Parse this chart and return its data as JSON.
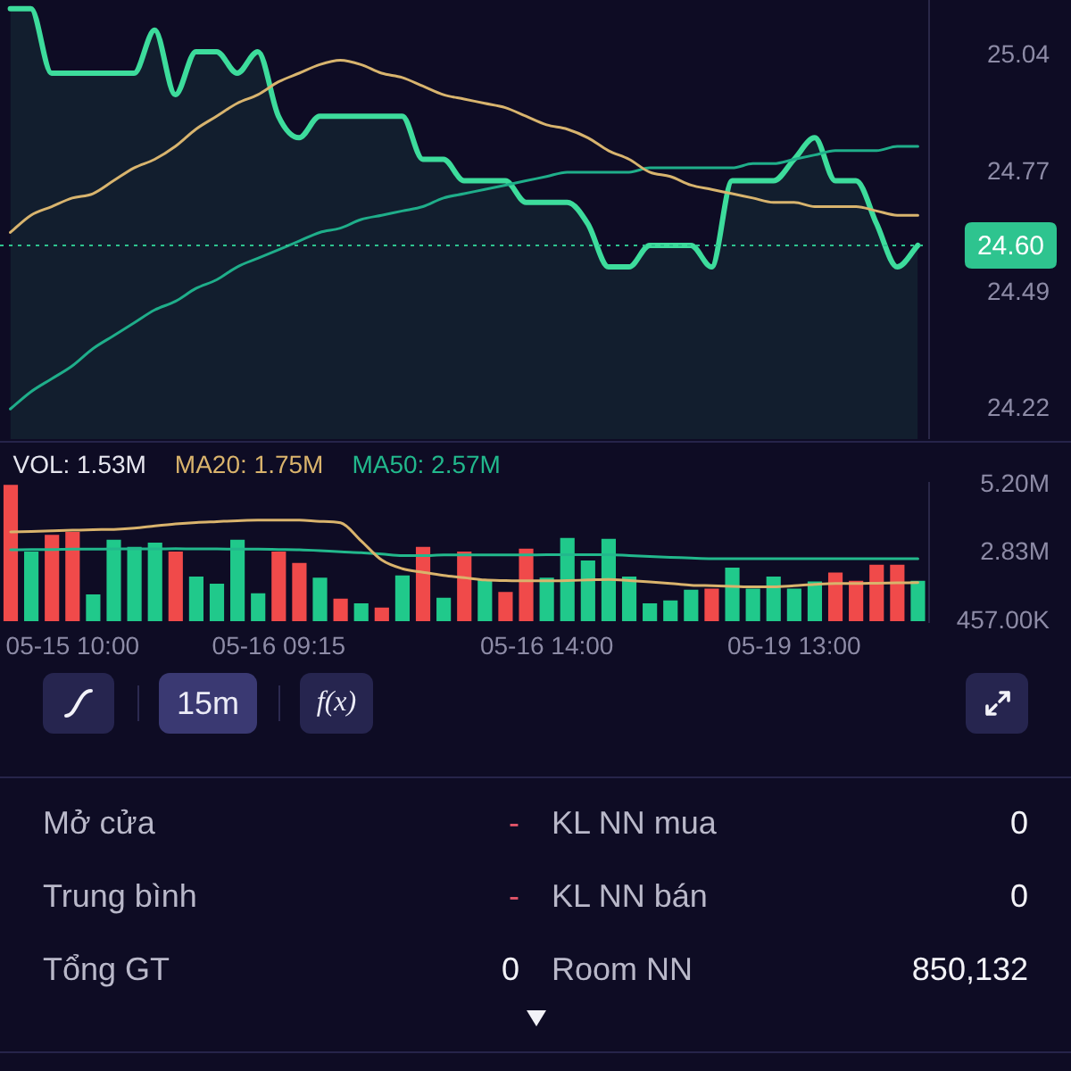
{
  "chart_data": [
    {
      "type": "line",
      "categories": [
        null,
        null,
        null,
        null,
        null,
        null,
        null,
        null,
        null,
        null,
        null,
        null,
        null,
        null,
        null,
        null,
        null,
        null,
        null,
        null,
        null,
        null,
        null,
        null,
        null,
        null,
        null,
        null,
        null,
        null,
        null,
        null,
        null,
        null,
        null,
        null,
        null,
        null,
        null,
        null,
        null,
        null,
        null,
        null,
        null
      ],
      "series": [
        {
          "type": "area",
          "color": "#3ddc9c",
          "values": [
            25.15,
            25.15,
            25.0,
            25.0,
            25.0,
            25.0,
            25.0,
            25.1,
            24.95,
            25.05,
            25.05,
            25.0,
            25.05,
            24.9,
            24.85,
            24.9,
            24.9,
            24.9,
            24.9,
            24.9,
            24.8,
            24.8,
            24.75,
            24.75,
            24.75,
            24.7,
            24.7,
            24.7,
            24.65,
            24.55,
            24.55,
            24.6,
            24.6,
            24.6,
            24.55,
            24.75,
            24.75,
            24.75,
            24.8,
            24.85,
            24.75,
            24.75,
            24.65,
            24.55,
            24.6
          ]
        },
        {
          "color": "#d8b46e",
          "values": [
            24.63,
            24.67,
            24.69,
            24.71,
            24.72,
            24.75,
            24.78,
            24.8,
            24.83,
            24.87,
            24.9,
            24.93,
            24.95,
            24.98,
            25.0,
            25.02,
            25.03,
            25.02,
            25.0,
            24.99,
            24.97,
            24.95,
            24.94,
            24.93,
            24.92,
            24.9,
            24.88,
            24.87,
            24.85,
            24.82,
            24.8,
            24.77,
            24.76,
            24.74,
            24.73,
            24.72,
            24.71,
            24.7,
            24.7,
            24.69,
            24.69,
            24.69,
            24.68,
            24.67,
            24.67
          ]
        },
        {
          "color": "#1fae8a",
          "values": [
            24.22,
            24.26,
            24.29,
            24.32,
            24.36,
            24.39,
            24.42,
            24.45,
            24.47,
            24.5,
            24.52,
            24.55,
            24.57,
            24.59,
            24.61,
            24.63,
            24.64,
            24.66,
            24.67,
            24.68,
            24.69,
            24.71,
            24.72,
            24.73,
            24.74,
            24.75,
            24.76,
            24.77,
            24.77,
            24.77,
            24.77,
            24.78,
            24.78,
            24.78,
            24.78,
            24.78,
            24.79,
            24.79,
            24.8,
            24.81,
            24.82,
            24.82,
            24.82,
            24.83,
            24.83
          ]
        }
      ],
      "ylim": [
        24.15,
        25.17
      ],
      "yticks": [
        24.22,
        24.49,
        24.77,
        25.04
      ],
      "tick_labels": "y",
      "ref_lines": [
        {
          "axis": "y",
          "value": 24.6,
          "label": "24.60",
          "color": "#2ec48f",
          "line_style": "dotted"
        }
      ]
    },
    {
      "type": "bar",
      "categories": [
        null,
        null,
        null,
        "05-15 10:00",
        null,
        null,
        null,
        null,
        null,
        null,
        null,
        null,
        null,
        "05-16 09:15",
        null,
        null,
        null,
        null,
        null,
        null,
        null,
        null,
        null,
        null,
        null,
        null,
        "05-16 14:00",
        null,
        null,
        null,
        null,
        null,
        null,
        null,
        null,
        null,
        null,
        null,
        "05-19 13:00",
        null,
        null,
        null,
        null,
        null,
        null
      ],
      "series": [
        {
          "name": "VOL: 1.53M",
          "colors": [
            "#f04a4a",
            "#20c98b",
            "#f04a4a",
            "#f04a4a",
            "#20c98b",
            "#20c98b",
            "#20c98b",
            "#20c98b",
            "#f04a4a",
            "#20c98b",
            "#20c98b",
            "#20c98b",
            "#20c98b",
            "#f04a4a",
            "#f04a4a",
            "#20c98b",
            "#f04a4a",
            "#20c98b",
            "#f04a4a",
            "#20c98b",
            "#f04a4a",
            "#20c98b",
            "#f04a4a",
            "#20c98b",
            "#f04a4a",
            "#f04a4a",
            "#20c98b",
            "#20c98b",
            "#20c98b",
            "#20c98b",
            "#20c98b",
            "#20c98b",
            "#20c98b",
            "#20c98b",
            "#f04a4a",
            "#20c98b",
            "#20c98b",
            "#20c98b",
            "#20c98b",
            "#20c98b",
            "#f04a4a",
            "#f04a4a",
            "#f04a4a",
            "#f04a4a",
            "#20c98b"
          ],
          "values": [
            5200000,
            2880000,
            3460000,
            3560000,
            1390000,
            3290000,
            3040000,
            3190000,
            2880000,
            2010000,
            1760000,
            3290000,
            1430000,
            2880000,
            2480000,
            1970000,
            1240000,
            1080000,
            930000,
            2050000,
            3040000,
            1270000,
            2880000,
            1910000,
            1470000,
            2980000,
            1970000,
            3350000,
            2570000,
            3320000,
            2010000,
            1080000,
            1180000,
            1550000,
            1590000,
            2320000,
            1590000,
            2010000,
            1590000,
            1840000,
            2150000,
            1860000,
            2420000,
            2420000,
            1860000
          ]
        },
        {
          "name": "MA20: 1.75M",
          "type": "line",
          "color": "#d9b36c",
          "values": [
            3560000,
            3580000,
            3600000,
            3620000,
            3640000,
            3650000,
            3690000,
            3770000,
            3840000,
            3890000,
            3920000,
            3950000,
            3970000,
            3970000,
            3970000,
            3930000,
            3880000,
            3250000,
            2580000,
            2280000,
            2160000,
            2050000,
            1970000,
            1890000,
            1870000,
            1860000,
            1860000,
            1870000,
            1890000,
            1910000,
            1870000,
            1820000,
            1770000,
            1710000,
            1690000,
            1670000,
            1650000,
            1650000,
            1690000,
            1740000,
            1770000,
            1770000,
            1780000,
            1790000,
            1800000
          ]
        },
        {
          "name": "MA50: 2.57M",
          "type": "line",
          "color": "#22b88c",
          "values": [
            2940000,
            2950000,
            2950000,
            2960000,
            2960000,
            2970000,
            2970000,
            2970000,
            2980000,
            2970000,
            2970000,
            2960000,
            2960000,
            2950000,
            2940000,
            2910000,
            2870000,
            2840000,
            2790000,
            2740000,
            2740000,
            2760000,
            2760000,
            2760000,
            2760000,
            2760000,
            2770000,
            2770000,
            2770000,
            2770000,
            2740000,
            2710000,
            2680000,
            2650000,
            2630000,
            2630000,
            2630000,
            2630000,
            2630000,
            2630000,
            2630000,
            2630000,
            2630000,
            2630000,
            2630000
          ]
        }
      ],
      "ylim": [
        457000,
        5300000
      ],
      "yticks": [
        {
          "value": 457000,
          "label": "457.00K"
        },
        {
          "value": 2830000,
          "label": "2.83M"
        },
        {
          "value": 5200000,
          "label": "5.20M"
        }
      ],
      "legend": "top left"
    },
    {
      "type": "other",
      "annotations": [
        "15m",
        "f(x)",
        "Mở cửa",
        "-",
        "KL NN mua",
        "0",
        "Trung bình",
        "-",
        "KL NN bán",
        "0",
        "Tổng GT",
        "0",
        "Room NN",
        "850,132"
      ]
    }
  ]
}
